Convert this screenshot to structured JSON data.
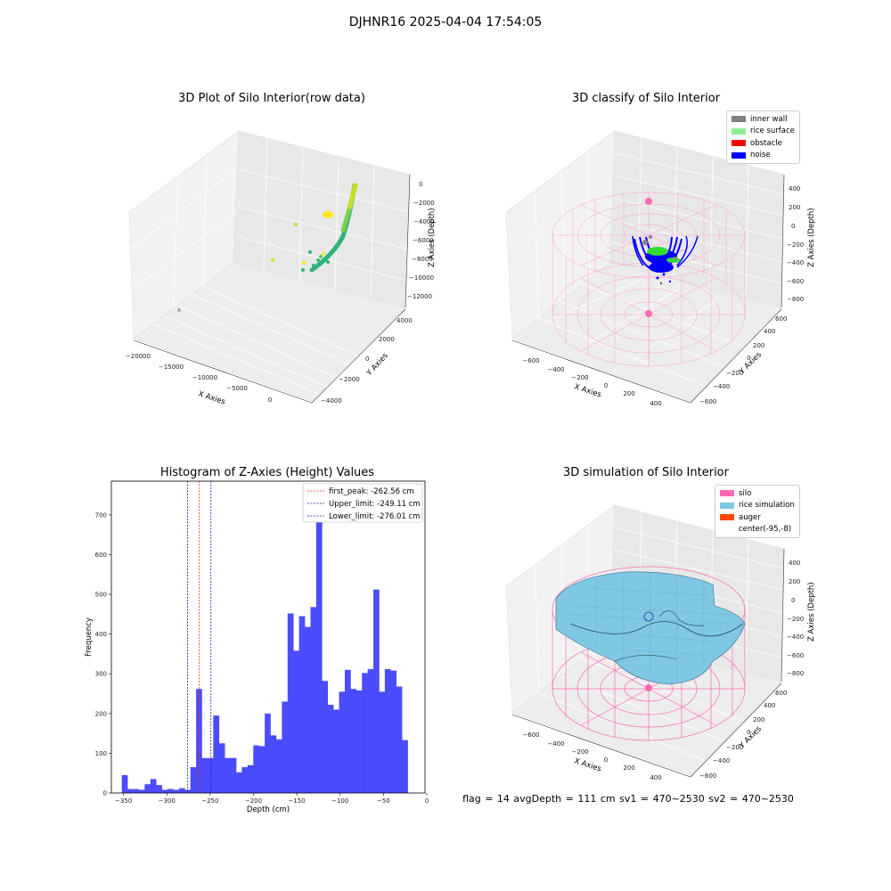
{
  "figure": {
    "suptitle": "DJHNR16 2025-04-04 17:54:05",
    "status_text": "flag = 14  avgDepth = 111 cm  sv1 = 470~2530  sv2 = 470~2530"
  },
  "colors": {
    "hist_bar": "#4b4bff",
    "first_peak": "#ff2a00",
    "limits": "#1a1aa8",
    "silo": "#ff69b4",
    "rice_sim": "#7ec8e3",
    "auger": "#ff4500",
    "inner_wall": "#808080",
    "rice_surface": "#90ee90",
    "obstacle": "#ff0000",
    "noise": "#0000ff"
  },
  "chart_data": [
    {
      "type": "scatter",
      "title": "3D Plot of Silo Interior(row data)",
      "xlabel": "X Axies",
      "ylabel": "Y Axies",
      "zlabel": "Z Axies (Depth)",
      "x_ticks": [
        "−20000",
        "−15000",
        "−10000",
        "−5000",
        "0"
      ],
      "y_ticks": [
        "−4000",
        "−2000",
        "0",
        "2000",
        "4000"
      ],
      "z_ticks": [
        "0",
        "−2000",
        "−4000",
        "−6000",
        "−8000",
        "−10000",
        "−12000"
      ],
      "grid": true
    },
    {
      "type": "scatter",
      "title": "3D classify of Silo Interior",
      "xlabel": "X Axies",
      "ylabel": "Y Axies",
      "zlabel": "Z Axies (Depth)",
      "x_ticks": [
        "−600",
        "−400",
        "−200",
        "0",
        "200",
        "400"
      ],
      "y_ticks": [
        "−600",
        "−400",
        "−200",
        "0",
        "200",
        "400",
        "600"
      ],
      "z_ticks": [
        "400",
        "200",
        "0",
        "−200",
        "−400",
        "−600",
        "−800"
      ],
      "legend": [
        "inner wall",
        "rice surface",
        "obstacle",
        "noise"
      ],
      "legend_position": "top-right",
      "grid": true
    },
    {
      "type": "bar",
      "title": "Histogram of Z-Axies (Height) Values",
      "xlabel": "Depth (cm)",
      "ylabel": "Frequency",
      "xlim": [
        -364,
        -2
      ],
      "ylim": [
        0,
        785
      ],
      "x_ticks": [
        "−350",
        "−300",
        "−250",
        "−200",
        "−150",
        "−100",
        "−50",
        "0"
      ],
      "y_ticks": [
        "0",
        "100",
        "200",
        "300",
        "400",
        "500",
        "600",
        "700"
      ],
      "bin_start": -352,
      "bin_width": 6.6,
      "values": [
        45,
        10,
        10,
        8,
        22,
        35,
        20,
        8,
        10,
        8,
        12,
        8,
        65,
        262,
        88,
        88,
        195,
        125,
        88,
        88,
        52,
        65,
        70,
        120,
        118,
        200,
        145,
        135,
        230,
        452,
        358,
        445,
        418,
        468,
        748,
        282,
        222,
        210,
        255,
        310,
        262,
        258,
        302,
        312,
        512,
        255,
        312,
        308,
        268,
        133
      ],
      "vlines": [
        {
          "label": "first_peak: -262.56 cm",
          "x": -262.56,
          "color_key": "first_peak"
        },
        {
          "label": "Upper_limit: -249.11 cm",
          "x": -249.11,
          "color_key": "limits"
        },
        {
          "label": "Lower_limit: -276.01 cm",
          "x": -276.01,
          "color_key": "limits"
        }
      ],
      "legend_position": "top-right",
      "grid": false
    },
    {
      "type": "area",
      "title": "3D simulation of Silo Interior",
      "xlabel": "X Axies",
      "ylabel": "Y Axies",
      "zlabel": "Z Axies (Depth)",
      "x_ticks": [
        "−600",
        "−400",
        "−200",
        "0",
        "200",
        "400"
      ],
      "y_ticks": [
        "−600",
        "−400",
        "−200",
        "0",
        "200",
        "400",
        "600"
      ],
      "z_ticks": [
        "400",
        "200",
        "0",
        "−200",
        "−400",
        "−600",
        "−800"
      ],
      "legend": [
        "silo",
        "rice simulation",
        "auger",
        "center(-95,-8)"
      ],
      "legend_position": "top-right",
      "grid": true
    }
  ]
}
